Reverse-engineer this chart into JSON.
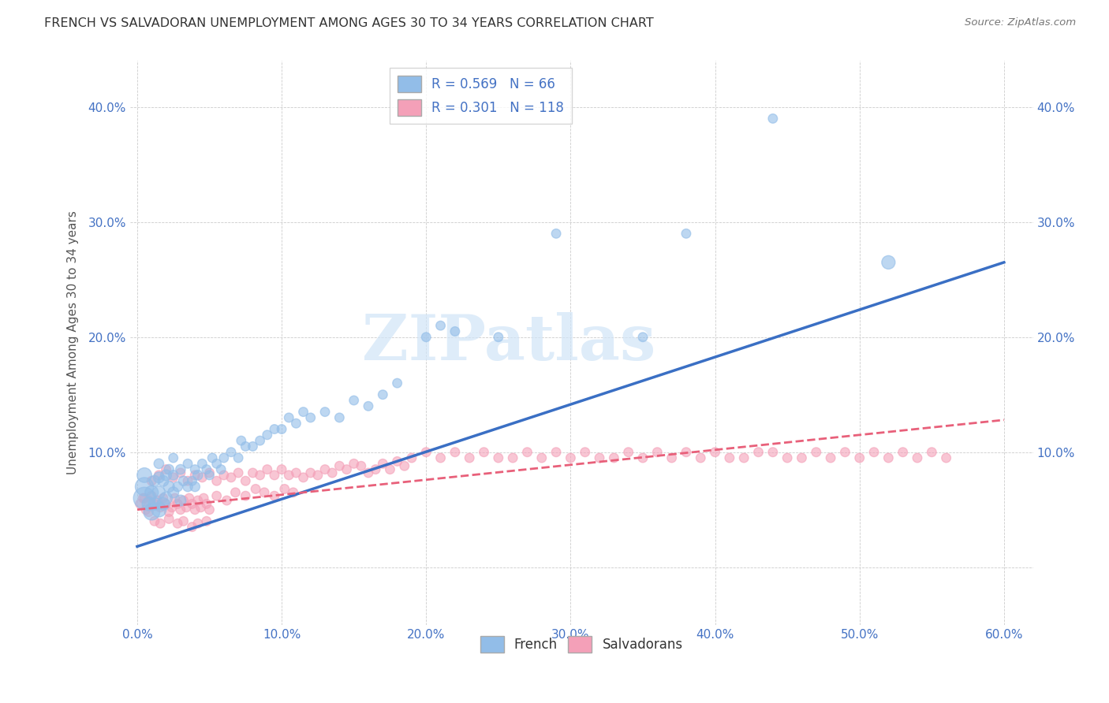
{
  "title": "FRENCH VS SALVADORAN UNEMPLOYMENT AMONG AGES 30 TO 34 YEARS CORRELATION CHART",
  "source": "Source: ZipAtlas.com",
  "xlabel_ticks": [
    "0.0%",
    "10.0%",
    "20.0%",
    "30.0%",
    "40.0%",
    "50.0%",
    "60.0%"
  ],
  "xlabel_vals": [
    0.0,
    0.1,
    0.2,
    0.3,
    0.4,
    0.5,
    0.6
  ],
  "ylabel": "Unemployment Among Ages 30 to 34 years",
  "ylabel_ticks_left": [
    "",
    "10.0%",
    "20.0%",
    "30.0%",
    "40.0%"
  ],
  "ylabel_ticks_right": [
    "",
    "10.0%",
    "20.0%",
    "30.0%",
    "40.0%"
  ],
  "ylabel_vals": [
    0.0,
    0.1,
    0.2,
    0.3,
    0.4
  ],
  "xlim": [
    -0.005,
    0.62
  ],
  "ylim": [
    -0.05,
    0.44
  ],
  "french_R": 0.569,
  "french_N": 66,
  "salvadoran_R": 0.301,
  "salvadoran_N": 118,
  "french_color": "#92BDE8",
  "salvadoran_color": "#F4A0B8",
  "french_line_color": "#3A6FC4",
  "salvadoran_line_color": "#E8607A",
  "tick_color": "#4472C4",
  "watermark_text": "ZIPatlas",
  "background_color": "#FFFFFF",
  "french_line_x0": 0.0,
  "french_line_y0": 0.018,
  "french_line_x1": 0.6,
  "french_line_y1": 0.265,
  "salv_line_x0": 0.0,
  "salv_line_y0": 0.05,
  "salv_line_x1": 0.6,
  "salv_line_y1": 0.128,
  "french_scatter_x": [
    0.005,
    0.005,
    0.005,
    0.008,
    0.01,
    0.01,
    0.012,
    0.012,
    0.015,
    0.015,
    0.015,
    0.015,
    0.018,
    0.018,
    0.02,
    0.02,
    0.022,
    0.022,
    0.025,
    0.025,
    0.025,
    0.028,
    0.03,
    0.03,
    0.032,
    0.035,
    0.035,
    0.038,
    0.04,
    0.04,
    0.042,
    0.045,
    0.048,
    0.05,
    0.052,
    0.055,
    0.058,
    0.06,
    0.065,
    0.07,
    0.072,
    0.075,
    0.08,
    0.085,
    0.09,
    0.095,
    0.1,
    0.105,
    0.11,
    0.115,
    0.12,
    0.13,
    0.14,
    0.15,
    0.16,
    0.17,
    0.18,
    0.2,
    0.21,
    0.22,
    0.25,
    0.29,
    0.35,
    0.38,
    0.44,
    0.52
  ],
  "french_scatter_y": [
    0.06,
    0.07,
    0.08,
    0.055,
    0.048,
    0.065,
    0.055,
    0.075,
    0.05,
    0.065,
    0.078,
    0.09,
    0.055,
    0.075,
    0.06,
    0.08,
    0.07,
    0.085,
    0.065,
    0.08,
    0.095,
    0.07,
    0.058,
    0.085,
    0.075,
    0.07,
    0.09,
    0.075,
    0.07,
    0.085,
    0.08,
    0.09,
    0.085,
    0.08,
    0.095,
    0.09,
    0.085,
    0.095,
    0.1,
    0.095,
    0.11,
    0.105,
    0.105,
    0.11,
    0.115,
    0.12,
    0.12,
    0.13,
    0.125,
    0.135,
    0.13,
    0.135,
    0.13,
    0.145,
    0.14,
    0.15,
    0.16,
    0.2,
    0.21,
    0.205,
    0.2,
    0.29,
    0.2,
    0.29,
    0.39,
    0.265
  ],
  "french_scatter_size": [
    400,
    280,
    180,
    150,
    220,
    150,
    130,
    100,
    180,
    130,
    100,
    80,
    130,
    100,
    130,
    100,
    100,
    80,
    100,
    80,
    70,
    80,
    100,
    80,
    80,
    80,
    70,
    70,
    80,
    70,
    80,
    70,
    70,
    70,
    70,
    70,
    70,
    70,
    70,
    70,
    70,
    70,
    70,
    70,
    70,
    70,
    70,
    70,
    70,
    70,
    70,
    70,
    70,
    70,
    70,
    70,
    70,
    70,
    70,
    70,
    70,
    70,
    70,
    70,
    70,
    150
  ],
  "salvadoran_scatter_x": [
    0.002,
    0.004,
    0.006,
    0.008,
    0.01,
    0.012,
    0.014,
    0.016,
    0.018,
    0.02,
    0.022,
    0.024,
    0.026,
    0.028,
    0.03,
    0.032,
    0.034,
    0.036,
    0.038,
    0.04,
    0.042,
    0.044,
    0.046,
    0.048,
    0.05,
    0.01,
    0.015,
    0.02,
    0.025,
    0.03,
    0.035,
    0.04,
    0.045,
    0.05,
    0.055,
    0.06,
    0.065,
    0.07,
    0.075,
    0.08,
    0.085,
    0.09,
    0.095,
    0.1,
    0.105,
    0.11,
    0.115,
    0.12,
    0.125,
    0.13,
    0.135,
    0.14,
    0.145,
    0.15,
    0.155,
    0.16,
    0.165,
    0.17,
    0.175,
    0.18,
    0.185,
    0.19,
    0.2,
    0.21,
    0.22,
    0.23,
    0.24,
    0.25,
    0.26,
    0.27,
    0.28,
    0.29,
    0.3,
    0.31,
    0.32,
    0.33,
    0.34,
    0.35,
    0.36,
    0.37,
    0.38,
    0.39,
    0.4,
    0.41,
    0.42,
    0.43,
    0.44,
    0.45,
    0.46,
    0.47,
    0.48,
    0.49,
    0.5,
    0.51,
    0.52,
    0.53,
    0.54,
    0.55,
    0.56,
    0.005,
    0.008,
    0.012,
    0.016,
    0.022,
    0.028,
    0.032,
    0.038,
    0.042,
    0.048,
    0.055,
    0.062,
    0.068,
    0.075,
    0.082,
    0.088,
    0.095,
    0.102,
    0.108
  ],
  "salvadoran_scatter_y": [
    0.055,
    0.06,
    0.05,
    0.058,
    0.062,
    0.055,
    0.058,
    0.052,
    0.06,
    0.055,
    0.048,
    0.052,
    0.06,
    0.055,
    0.05,
    0.058,
    0.052,
    0.06,
    0.055,
    0.05,
    0.058,
    0.052,
    0.06,
    0.055,
    0.05,
    0.075,
    0.08,
    0.085,
    0.078,
    0.082,
    0.075,
    0.08,
    0.078,
    0.082,
    0.075,
    0.08,
    0.078,
    0.082,
    0.075,
    0.082,
    0.08,
    0.085,
    0.08,
    0.085,
    0.08,
    0.082,
    0.078,
    0.082,
    0.08,
    0.085,
    0.082,
    0.088,
    0.085,
    0.09,
    0.088,
    0.082,
    0.085,
    0.09,
    0.085,
    0.092,
    0.088,
    0.095,
    0.1,
    0.095,
    0.1,
    0.095,
    0.1,
    0.095,
    0.095,
    0.1,
    0.095,
    0.1,
    0.095,
    0.1,
    0.095,
    0.095,
    0.1,
    0.095,
    0.1,
    0.095,
    0.1,
    0.095,
    0.1,
    0.095,
    0.095,
    0.1,
    0.1,
    0.095,
    0.095,
    0.1,
    0.095,
    0.1,
    0.095,
    0.1,
    0.095,
    0.1,
    0.095,
    0.1,
    0.095,
    0.06,
    0.048,
    0.04,
    0.038,
    0.042,
    0.038,
    0.04,
    0.035,
    0.038,
    0.04,
    0.062,
    0.058,
    0.065,
    0.062,
    0.068,
    0.065,
    0.062,
    0.068,
    0.065
  ],
  "salvadoran_scatter_size": [
    70,
    70,
    70,
    70,
    70,
    70,
    70,
    70,
    70,
    70,
    70,
    70,
    70,
    70,
    70,
    70,
    70,
    70,
    70,
    70,
    70,
    70,
    70,
    70,
    70,
    70,
    70,
    70,
    70,
    70,
    70,
    70,
    70,
    70,
    70,
    70,
    70,
    70,
    70,
    70,
    70,
    70,
    70,
    70,
    70,
    70,
    70,
    70,
    70,
    70,
    70,
    70,
    70,
    70,
    70,
    70,
    70,
    70,
    70,
    70,
    70,
    70,
    70,
    70,
    70,
    70,
    70,
    70,
    70,
    70,
    70,
    70,
    70,
    70,
    70,
    70,
    70,
    70,
    70,
    70,
    70,
    70,
    70,
    70,
    70,
    70,
    70,
    70,
    70,
    70,
    70,
    70,
    70,
    70,
    70,
    70,
    70,
    70,
    70,
    70,
    70,
    70,
    70,
    70,
    70,
    70,
    70,
    70,
    70,
    70,
    70,
    70,
    70,
    70,
    70,
    70,
    70,
    70
  ]
}
